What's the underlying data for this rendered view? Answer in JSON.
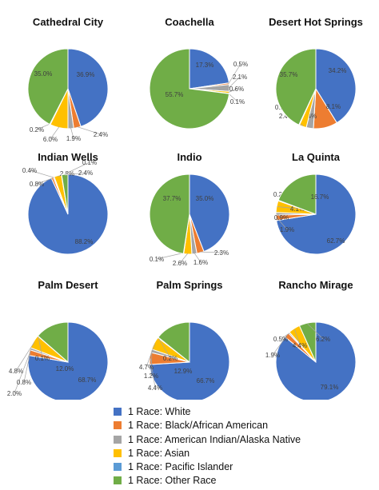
{
  "legend": {
    "items": [
      {
        "label": "1 Race: White",
        "color": "#4472C4"
      },
      {
        "label": "1 Race: Black/African American",
        "color": "#ED7D31"
      },
      {
        "label": "1 Race: American Indian/Alaska Native",
        "color": "#A5A5A5"
      },
      {
        "label": "1 Race: Asian",
        "color": "#FFC000"
      },
      {
        "label": "1 Race: Pacific Islander",
        "color": "#5B9BD5"
      },
      {
        "label": "1 Race: Other Race",
        "color": "#70AD47"
      }
    ]
  },
  "chart_data": [
    {
      "type": "pie",
      "title": "Cathedral City",
      "categories": [
        "1 Race: White",
        "1 Race: Black/African American",
        "1 Race: American Indian/Alaska Native",
        "1 Race: Asian",
        "1 Race: Pacific Islander",
        "1 Race: Other Race"
      ],
      "values": [
        36.9,
        2.4,
        1.9,
        6.0,
        0.2,
        35.0
      ],
      "labels": [
        "36.9%",
        "2.4%",
        "1.9%",
        "6.0%",
        "0.2%",
        "35.0%"
      ]
    },
    {
      "type": "pie",
      "title": "Coachella",
      "categories": [
        "1 Race: White",
        "1 Race: Black/African American",
        "1 Race: American Indian/Alaska Native",
        "1 Race: Asian",
        "1 Race: Pacific Islander",
        "1 Race: Other Race"
      ],
      "values": [
        17.3,
        0.5,
        2.1,
        0.6,
        0.1,
        55.7
      ],
      "labels": [
        "17.3%",
        "0.5%",
        "2.1%",
        "0.6%",
        "0.1%",
        "55.7%"
      ]
    },
    {
      "type": "pie",
      "title": "Desert Hot Springs",
      "categories": [
        "1 Race: White",
        "1 Race: Black/African American",
        "1 Race: American Indian/Alaska Native",
        "1 Race: Asian",
        "1 Race: Pacific Islander",
        "1 Race: Other Race"
      ],
      "values": [
        34.2,
        8.1,
        2.4,
        2.4,
        0.2,
        35.7
      ],
      "labels": [
        "34.2%",
        "8.1%",
        "2.4%",
        "2.4%",
        "0.2%",
        "35.7%"
      ]
    },
    {
      "type": "pie",
      "title": "Indian Wells",
      "categories": [
        "1 Race: White",
        "1 Race: Black/African American",
        "1 Race: American Indian/Alaska Native",
        "1 Race: Asian",
        "1 Race: Pacific Islander",
        "1 Race: Other Race"
      ],
      "values": [
        88.2,
        0.8,
        0.4,
        2.8,
        0.1,
        2.4
      ],
      "labels": [
        "88.2%",
        "0.8%",
        "0.4%",
        "2.8%",
        "0.1%",
        "2.4%"
      ]
    },
    {
      "type": "pie",
      "title": "Indio",
      "categories": [
        "1 Race: White",
        "1 Race: Black/African American",
        "1 Race: American Indian/Alaska Native",
        "1 Race: Asian",
        "1 Race: Pacific Islander",
        "1 Race: Other Race"
      ],
      "values": [
        35.0,
        2.3,
        1.6,
        2.6,
        0.1,
        37.7
      ],
      "labels": [
        "35.0%",
        "2.3%",
        "1.6%",
        "2.6%",
        "0.1%",
        "37.7%"
      ]
    },
    {
      "type": "pie",
      "title": "La Quinta",
      "categories": [
        "1 Race: White",
        "1 Race: Black/African American",
        "1 Race: American Indian/Alaska Native",
        "1 Race: Asian",
        "1 Race: Pacific Islander",
        "1 Race: Other Race"
      ],
      "values": [
        62.7,
        1.9,
        0.9,
        4.1,
        0.2,
        16.7
      ],
      "labels": [
        "62.7%",
        "1.9%",
        "0.9%",
        "4.1%",
        "0.2%",
        "16.7%"
      ]
    },
    {
      "type": "pie",
      "title": "Palm Desert",
      "categories": [
        "1 Race: White",
        "1 Race: Black/African American",
        "1 Race: American Indian/Alaska Native",
        "1 Race: Asian",
        "1 Race: Pacific Islander",
        "1 Race: Other Race"
      ],
      "values": [
        68.7,
        2.0,
        0.8,
        4.8,
        0.1,
        12.0
      ],
      "labels": [
        "68.7%",
        "2.0%",
        "0.8%",
        "4.8%",
        "0.1%",
        "12.0%"
      ]
    },
    {
      "type": "pie",
      "title": "Palm Springs",
      "categories": [
        "1 Race: White",
        "1 Race: Black/African American",
        "1 Race: American Indian/Alaska Native",
        "1 Race: Asian",
        "1 Race: Pacific Islander",
        "1 Race: Other Race"
      ],
      "values": [
        66.7,
        4.4,
        1.2,
        4.7,
        0.2,
        12.9
      ],
      "labels": [
        "66.7%",
        "4.4%",
        "1.2%",
        "4.7%",
        "0.2%",
        "12.9%"
      ]
    },
    {
      "type": "pie",
      "title": "Rancho Mirage",
      "categories": [
        "1 Race: White",
        "1 Race: Black/African American",
        "1 Race: American Indian/Alaska Native",
        "1 Race: Asian",
        "1 Race: Pacific Islander",
        "1 Race: Other Race"
      ],
      "values": [
        79.1,
        1.9,
        0.5,
        4.4,
        0.0,
        6.2
      ],
      "labels": [
        "79.1%",
        "1.9%",
        "0.5%",
        "4.4%",
        "",
        "6.2%"
      ]
    }
  ]
}
